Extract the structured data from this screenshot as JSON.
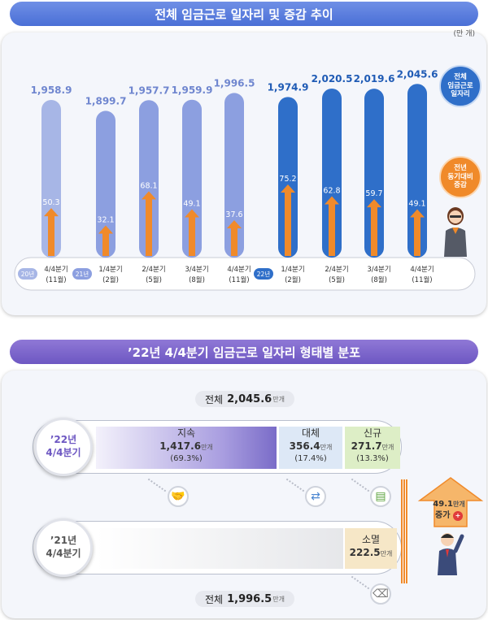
{
  "section1": {
    "title": "전체 임금근로 일자리 및 증감 추이",
    "unit": "(만 개)",
    "callout_total": "전체\n임금근로\n일자리",
    "callout_change": "전년\n동기대비\n증감"
  },
  "chart_data": {
    "type": "bar",
    "title": "전체 임금근로 일자리 및 증감 추이",
    "categories": [
      "4/4분기 (11월)",
      "1/4분기 (2월)",
      "2/4분기 (5월)",
      "3/4분기 (8월)",
      "4/4분기 (11월)",
      "1/4분기 (2월)",
      "2/4분기 (5월)",
      "3/4분기 (8월)",
      "4/4분기 (11월)"
    ],
    "year_labels": [
      "20년",
      "21년",
      "22년"
    ],
    "year_groups": [
      1,
      4,
      4
    ],
    "series": [
      {
        "name": "전체 임금근로 일자리",
        "values": [
          1958.9,
          1899.7,
          1957.7,
          1959.9,
          1996.5,
          1974.9,
          2020.5,
          2019.6,
          2045.6
        ]
      },
      {
        "name": "전년 동기대비 증감",
        "values": [
          50.3,
          32.1,
          68.1,
          49.1,
          37.6,
          75.2,
          62.8,
          59.7,
          49.1
        ]
      }
    ],
    "tick_top": [
      "4/4분기",
      "1/4분기",
      "2/4분기",
      "3/4분기",
      "4/4분기",
      "1/4분기",
      "2/4분기",
      "3/4분기",
      "4/4분기"
    ],
    "tick_bottom": [
      "(11월)",
      "(2월)",
      "(5월)",
      "(8월)",
      "(11월)",
      "(2월)",
      "(5월)",
      "(8월)",
      "(11월)"
    ],
    "colors": {
      "bar2020": "#a7b6e6",
      "bar2021": "#8c9fe0",
      "bar2022": "#2f6fc9",
      "arrow": "#f08a2a",
      "total_label_light": "#6f86cf",
      "total_label_dark": "#1f5bb5"
    }
  },
  "section2": {
    "title": "’22년 4/4분기 임금근로 일자리 형태별 분포",
    "total22_label": "전체",
    "total22_value": "2,045.6",
    "total22_unit": "만개",
    "total21_label": "전체",
    "total21_value": "1,996.5",
    "total21_unit": "만개",
    "year22_a": "’22년",
    "year22_b": "4/4분기",
    "year21_a": "’21년",
    "year21_b": "4/4분기",
    "continue_label": "지속",
    "continue_value": "1,417.6",
    "continue_pct": "(69.3%)",
    "replace_label": "대체",
    "replace_value": "356.4",
    "replace_pct": "(17.4%)",
    "new_label": "신규",
    "new_value": "271.7",
    "new_pct": "(13.3%)",
    "extinct_label": "소멸",
    "extinct_value": "222.5",
    "unit": "만개",
    "increase_value": "49.1",
    "increase_unit": "만개",
    "increase_label": "증가"
  }
}
